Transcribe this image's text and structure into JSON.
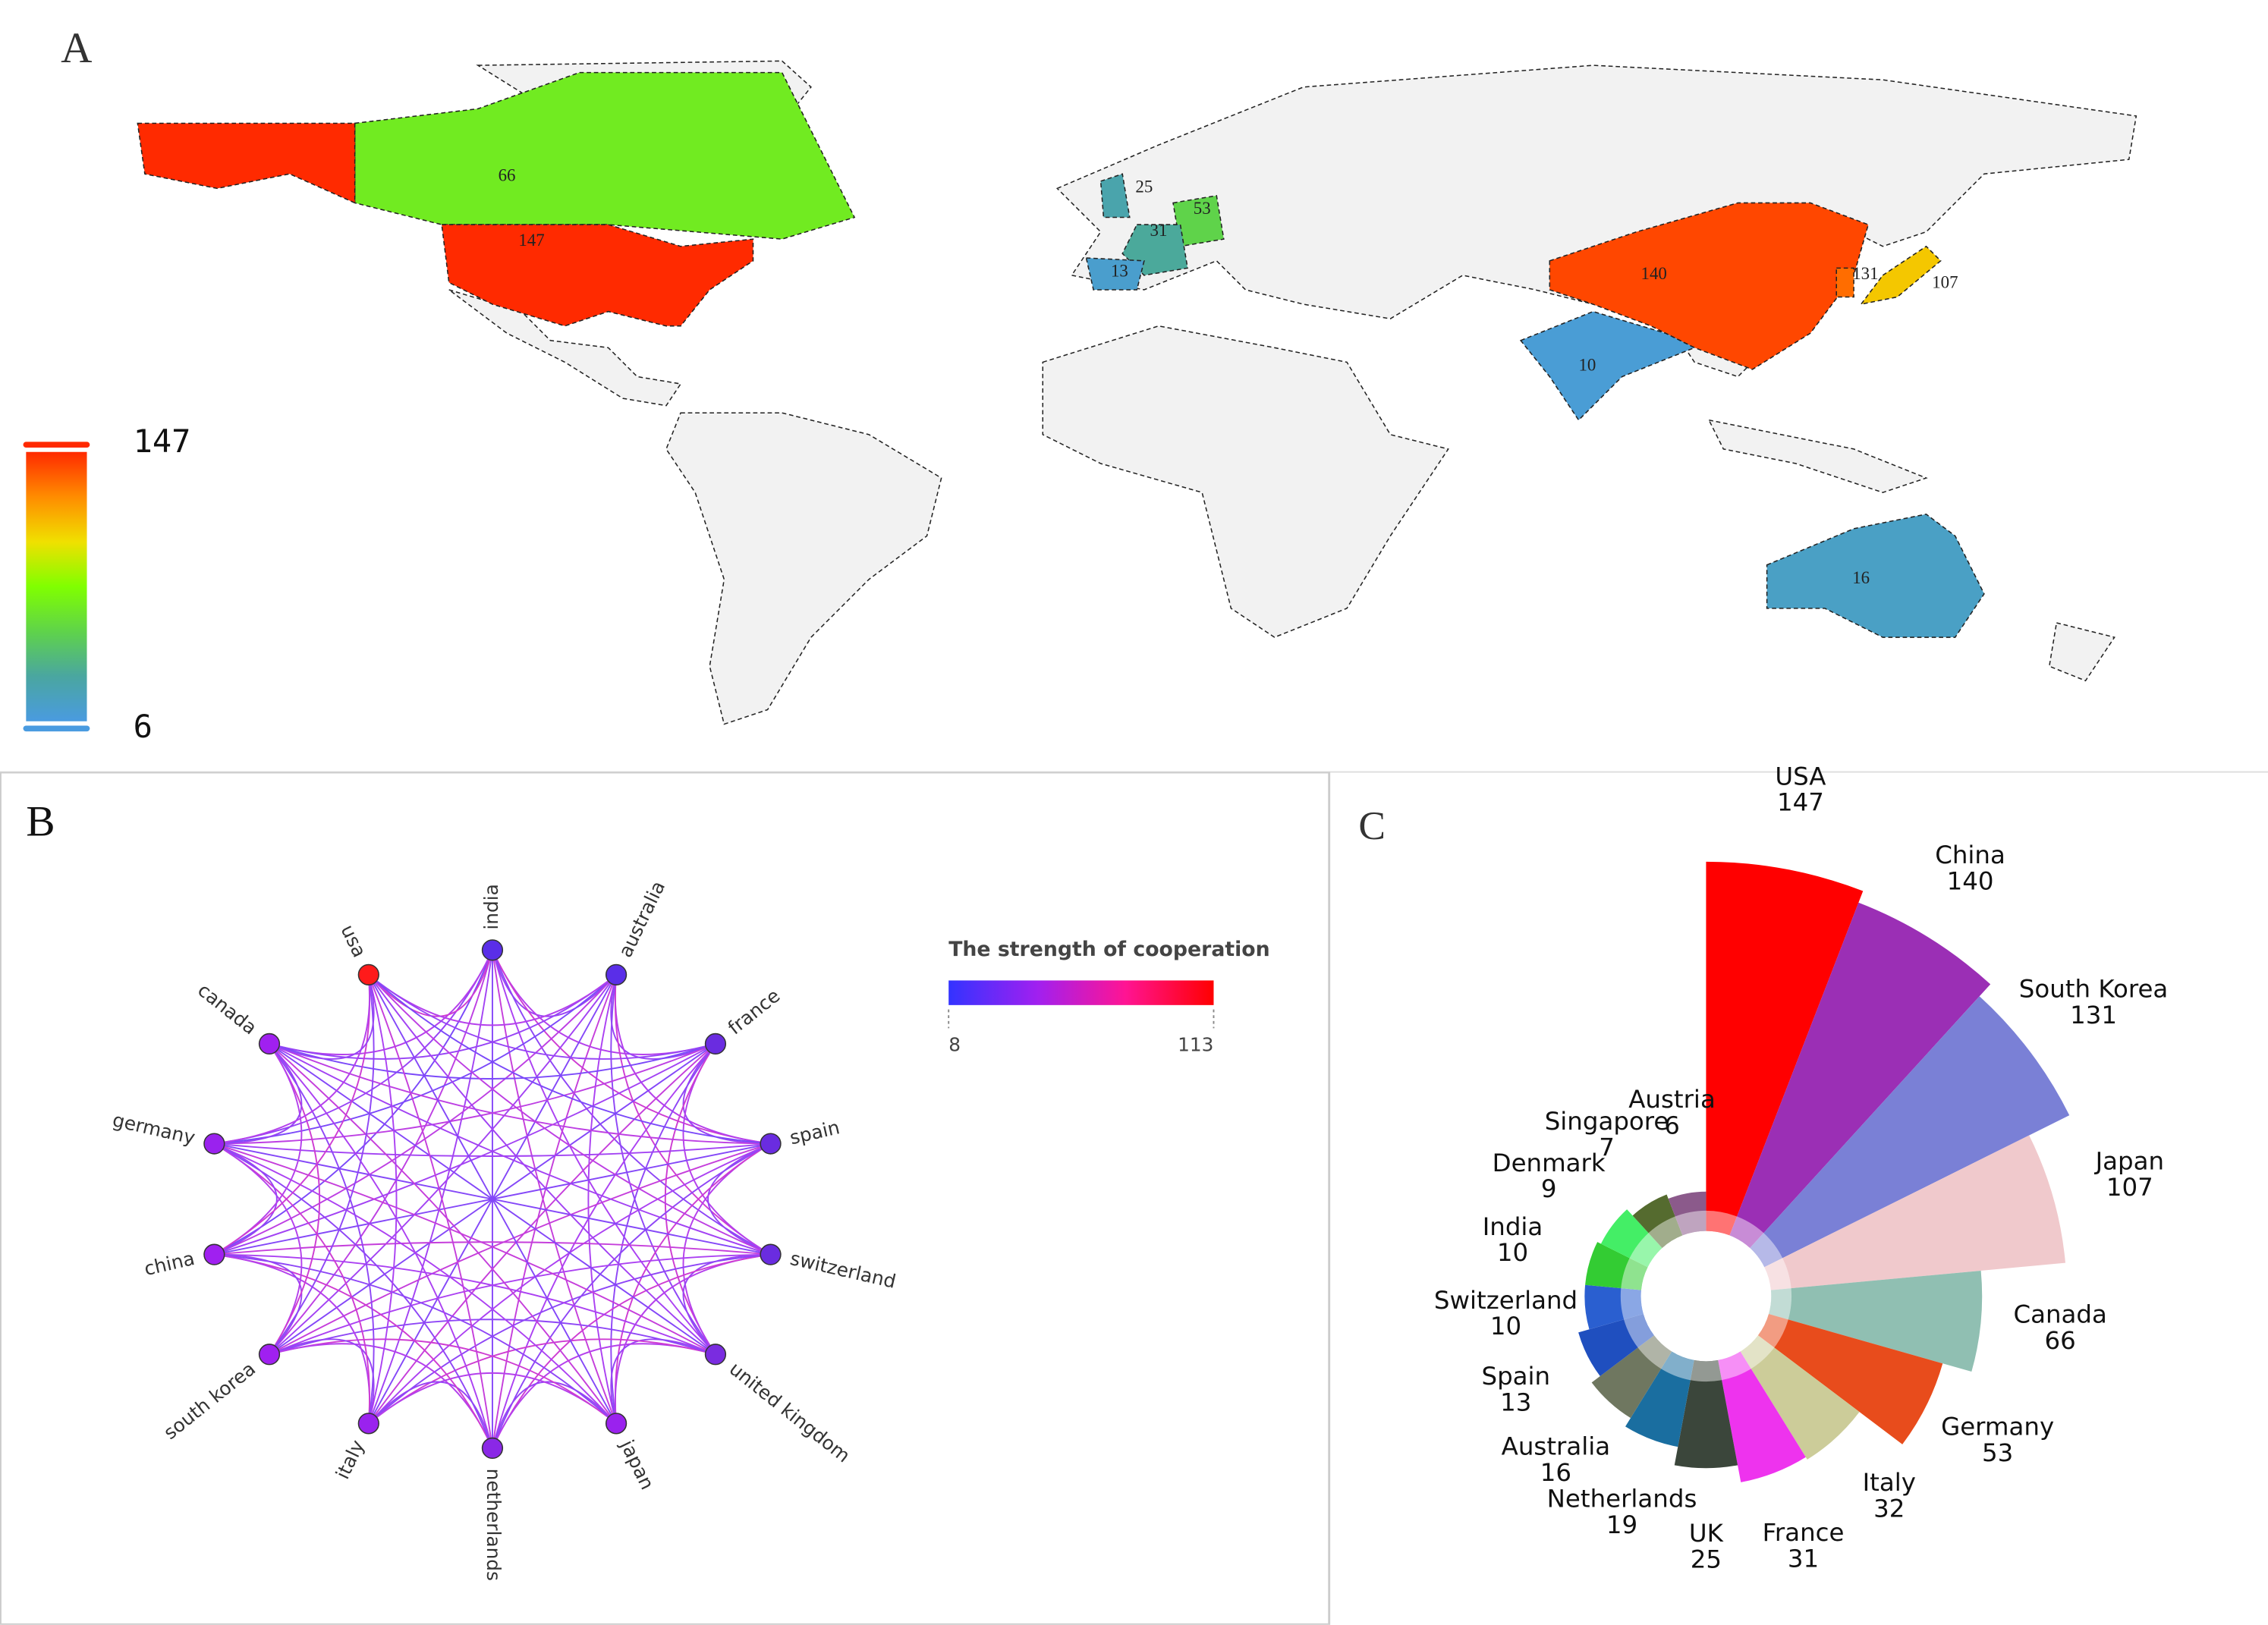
{
  "chart_data": [
    {
      "type": "map",
      "panel": "A",
      "values": [
        66,
        147,
        25,
        53,
        31,
        13,
        140,
        131,
        107,
        10,
        16
      ],
      "clim": [
        6,
        147
      ],
      "colorscale": [
        "#4a9be0",
        "#4aa6a0",
        "#5fd34a",
        "#80ff00",
        "#f0e000",
        "#ff8c00",
        "#ff2a00"
      ]
    },
    {
      "type": "network",
      "panel": "B",
      "nodes": [
        "india",
        "australia",
        "france",
        "spain",
        "switzerland",
        "united kingdom",
        "japan",
        "netherlands",
        "italy",
        "south korea",
        "china",
        "germany",
        "canada",
        "usa"
      ],
      "node_colors": [
        "#5a2ee8",
        "#5a2ee8",
        "#6a2ce0",
        "#6a2ce0",
        "#6a2ce0",
        "#7a2ce0",
        "#9a22ee",
        "#8a28e6",
        "#9a22ee",
        "#a020f0",
        "#a020f0",
        "#9a22ee",
        "#a020f0",
        "#ff1a1a"
      ],
      "legend_title": "The strength of cooperation",
      "clim": [
        8,
        113
      ],
      "colorscale": [
        "#3333ff",
        "#a020f0",
        "#ff1493",
        "#ff0000"
      ]
    },
    {
      "type": "polar-bar",
      "panel": "C",
      "categories": [
        "USA",
        "China",
        "South Korea",
        "Japan",
        "Canada",
        "Germany",
        "Italy",
        "France",
        "UK",
        "Netherlands",
        "Australia",
        "Spain",
        "Switzerland",
        "India",
        "Denmark",
        "Singapore",
        "Austria"
      ],
      "values": [
        147,
        140,
        131,
        107,
        66,
        53,
        32,
        31,
        25,
        19,
        16,
        13,
        10,
        10,
        9,
        7,
        6
      ],
      "colors": [
        "#ff0000",
        "#9b2fb5",
        "#7a80d6",
        "#f0c9cc",
        "#90bfb2",
        "#e84c1c",
        "#cccc99",
        "#ee33ee",
        "#3b463b",
        "#1a6ea0",
        "#6f7760",
        "#1f4fbf",
        "#2a5fd0",
        "#33cc33",
        "#44ee66",
        "#556b2f",
        "#8b5a8b"
      ]
    }
  ]
}
